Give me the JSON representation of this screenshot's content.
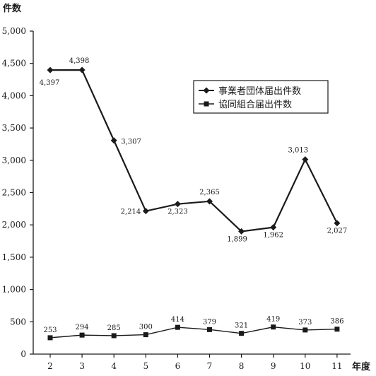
{
  "chart_data": {
    "type": "line",
    "title": "",
    "ylabel": "件数",
    "xlabel": "年度",
    "categories": [
      "2",
      "3",
      "4",
      "5",
      "6",
      "7",
      "8",
      "9",
      "10",
      "11"
    ],
    "ylim": [
      0,
      5000
    ],
    "yticks": [
      0,
      500,
      1000,
      1500,
      2000,
      2500,
      3000,
      3500,
      4000,
      4500,
      5000
    ],
    "ytick_labels": [
      "0",
      "500",
      "1,000",
      "1,500",
      "2,000",
      "2,500",
      "3,000",
      "3,500",
      "4,000",
      "4,500",
      "5,000"
    ],
    "grid": false,
    "legend_position": "top-right",
    "series": [
      {
        "name": "事業者団体届出件数",
        "marker": "diamond",
        "values": [
          4397,
          4398,
          3307,
          2214,
          2323,
          2365,
          1899,
          1962,
          3013,
          2027
        ],
        "labels": [
          "4,397",
          "4,398",
          "3,307",
          "2,214",
          "2,323",
          "2,365",
          "1,899",
          "1,962",
          "3,013",
          "2,027"
        ]
      },
      {
        "name": "協同組合届出件数",
        "marker": "square",
        "values": [
          253,
          294,
          285,
          300,
          414,
          379,
          321,
          419,
          373,
          386
        ],
        "labels": [
          "253",
          "294",
          "285",
          "300",
          "414",
          "379",
          "321",
          "419",
          "373",
          "386"
        ]
      }
    ]
  }
}
